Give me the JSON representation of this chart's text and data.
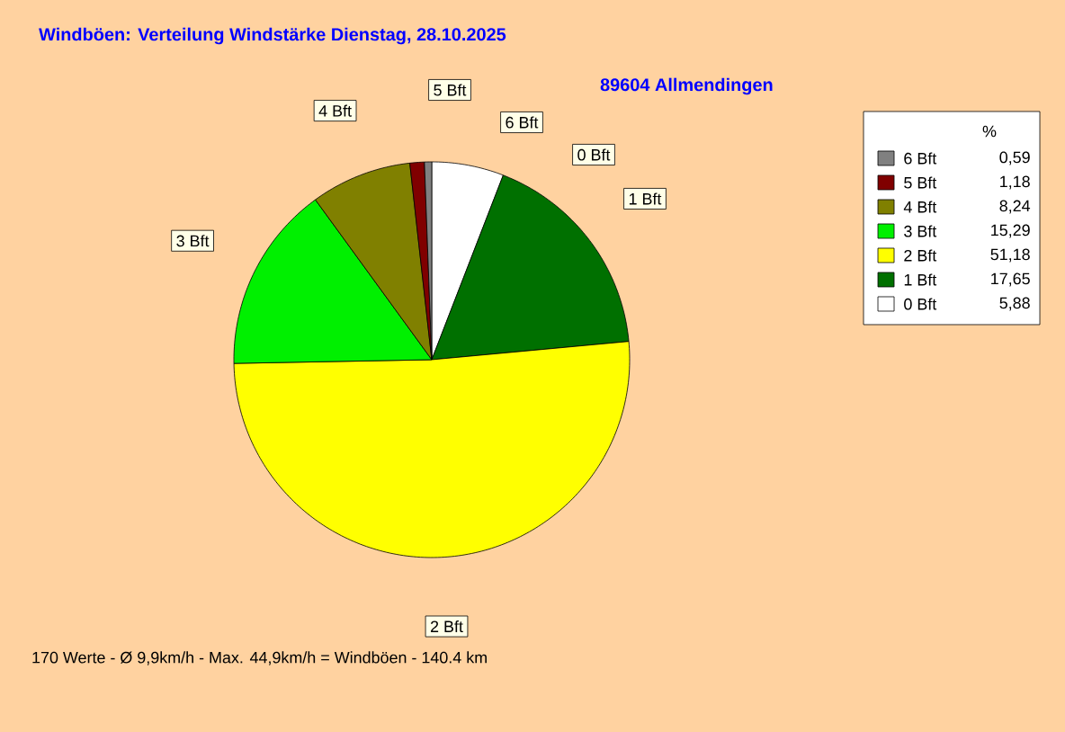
{
  "chart_data": {
    "type": "pie",
    "title": "Windböen: Verteilung Windstärke  Dienstag, 28.10.2025",
    "subtitle": "89604 Allmendingen",
    "categories": [
      "0 Bft",
      "1 Bft",
      "2 Bft",
      "3 Bft",
      "4 Bft",
      "5 Bft",
      "6 Bft"
    ],
    "values": [
      5.88,
      17.65,
      51.18,
      15.29,
      8.24,
      1.18,
      0.59
    ],
    "value_labels": [
      "5,88",
      "17,65",
      "51,18",
      "15,29",
      "8,24",
      "1,18",
      "0,59"
    ],
    "colors": [
      "#ffffff",
      "#007000",
      "#ffff00",
      "#00f000",
      "#808000",
      "#800000",
      "#808080"
    ],
    "legend": "right",
    "legend_title": "%",
    "annotations": [
      "170 Werte   -   Ø 9,9km/h  -  Max. 44,9km/h = Windböen   -   140.4 km"
    ]
  }
}
